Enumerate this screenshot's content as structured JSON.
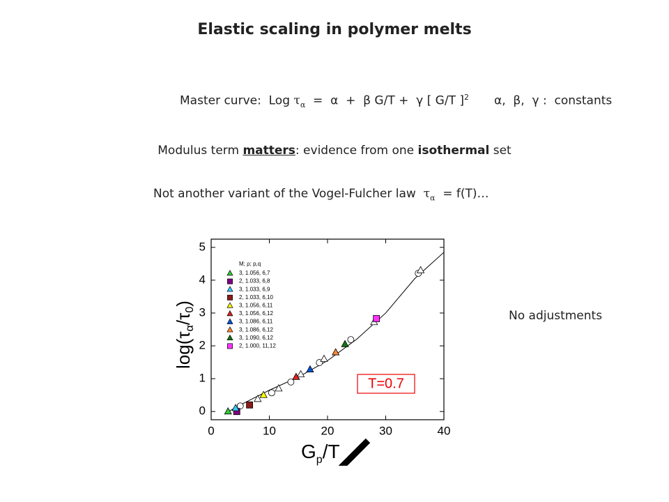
{
  "slide": {
    "title": "Elastic scaling in polymer melts",
    "equation": [
      "Master curve:  Log ",
      "τ",
      "α",
      "  =  α  +  β G/T +  γ [ G/T ]",
      "2",
      "α,  β,  γ :  constants"
    ],
    "modulus_line": [
      "Modulus term ",
      "matters",
      ": evidence from one ",
      "isothermal",
      " set"
    ],
    "vf_line": [
      "Not another variant of the Vogel-Fulcher law  ",
      "τ",
      "α",
      "  = f(T)…"
    ],
    "note": "No adjustments"
  },
  "chart_data": {
    "type": "scatter",
    "ylabel": [
      "log(τ",
      "α",
      "/τ",
      "0",
      ")"
    ],
    "xlabel": [
      "G",
      "p",
      "/T"
    ],
    "legend_title": "M; ρ; p,q",
    "annotation": "T=0.7",
    "xlim": [
      0,
      40
    ],
    "ylim": [
      -0.25,
      5.25
    ],
    "xticks": [
      0,
      10,
      20,
      30,
      40
    ],
    "yticks": [
      0,
      1,
      2,
      3,
      4,
      5
    ],
    "series": [
      {
        "name": "3, 1.056, 6,7",
        "color": "#33cc33",
        "marker": "triangle",
        "x": [
          2.9
        ],
        "values": [
          0.0
        ]
      },
      {
        "name": "2, 1.033, 6,8",
        "color": "#800080",
        "marker": "square",
        "x": [
          4.4
        ],
        "values": [
          0.0
        ]
      },
      {
        "name": "3, 1.033, 6,9",
        "color": "#33ccff",
        "marker": "triangle",
        "x": [
          4.2
        ],
        "values": [
          0.1
        ]
      },
      {
        "name": "2, 1.033, 6,10",
        "color": "#8b1a1a",
        "marker": "square",
        "x": [
          6.6
        ],
        "values": [
          0.2
        ]
      },
      {
        "name": "3, 1.056, 6,11",
        "color": "#ffff00",
        "marker": "triangle",
        "x": [
          9.0
        ],
        "values": [
          0.5
        ]
      },
      {
        "name": "3, 1.056, 6,12",
        "color": "#dd2222",
        "marker": "triangle",
        "x": [
          14.6
        ],
        "values": [
          1.05
        ]
      },
      {
        "name": "3, 1.086, 6,11",
        "color": "#0055dd",
        "marker": "triangle",
        "x": [
          17.0
        ],
        "values": [
          1.28
        ]
      },
      {
        "name": "3, 1.086, 6,12",
        "color": "#ff8833",
        "marker": "triangle",
        "x": [
          21.4
        ],
        "values": [
          1.8
        ]
      },
      {
        "name": "3, 1.090, 6,12",
        "color": "#117711",
        "marker": "triangle",
        "x": [
          23.0
        ],
        "values": [
          2.05
        ]
      },
      {
        "name": "2, 1.000, 11,12",
        "color": "#ff33ff",
        "marker": "square",
        "x": [
          28.4
        ],
        "values": [
          2.83
        ]
      }
    ],
    "open_points": {
      "x": [
        5,
        8,
        10.4,
        11.6,
        13.7,
        15.4,
        18.6,
        19.4,
        24,
        28,
        35.6,
        36
      ],
      "values": [
        0.17,
        0.38,
        0.57,
        0.7,
        0.9,
        1.13,
        1.49,
        1.6,
        2.19,
        2.72,
        4.21,
        4.3
      ]
    },
    "curve": {
      "x": [
        2.5,
        5,
        10,
        15,
        20,
        25,
        30,
        35,
        40
      ],
      "values": [
        -0.05,
        0.2,
        0.65,
        1.05,
        1.55,
        2.2,
        3.0,
        4.05,
        4.85
      ]
    }
  }
}
